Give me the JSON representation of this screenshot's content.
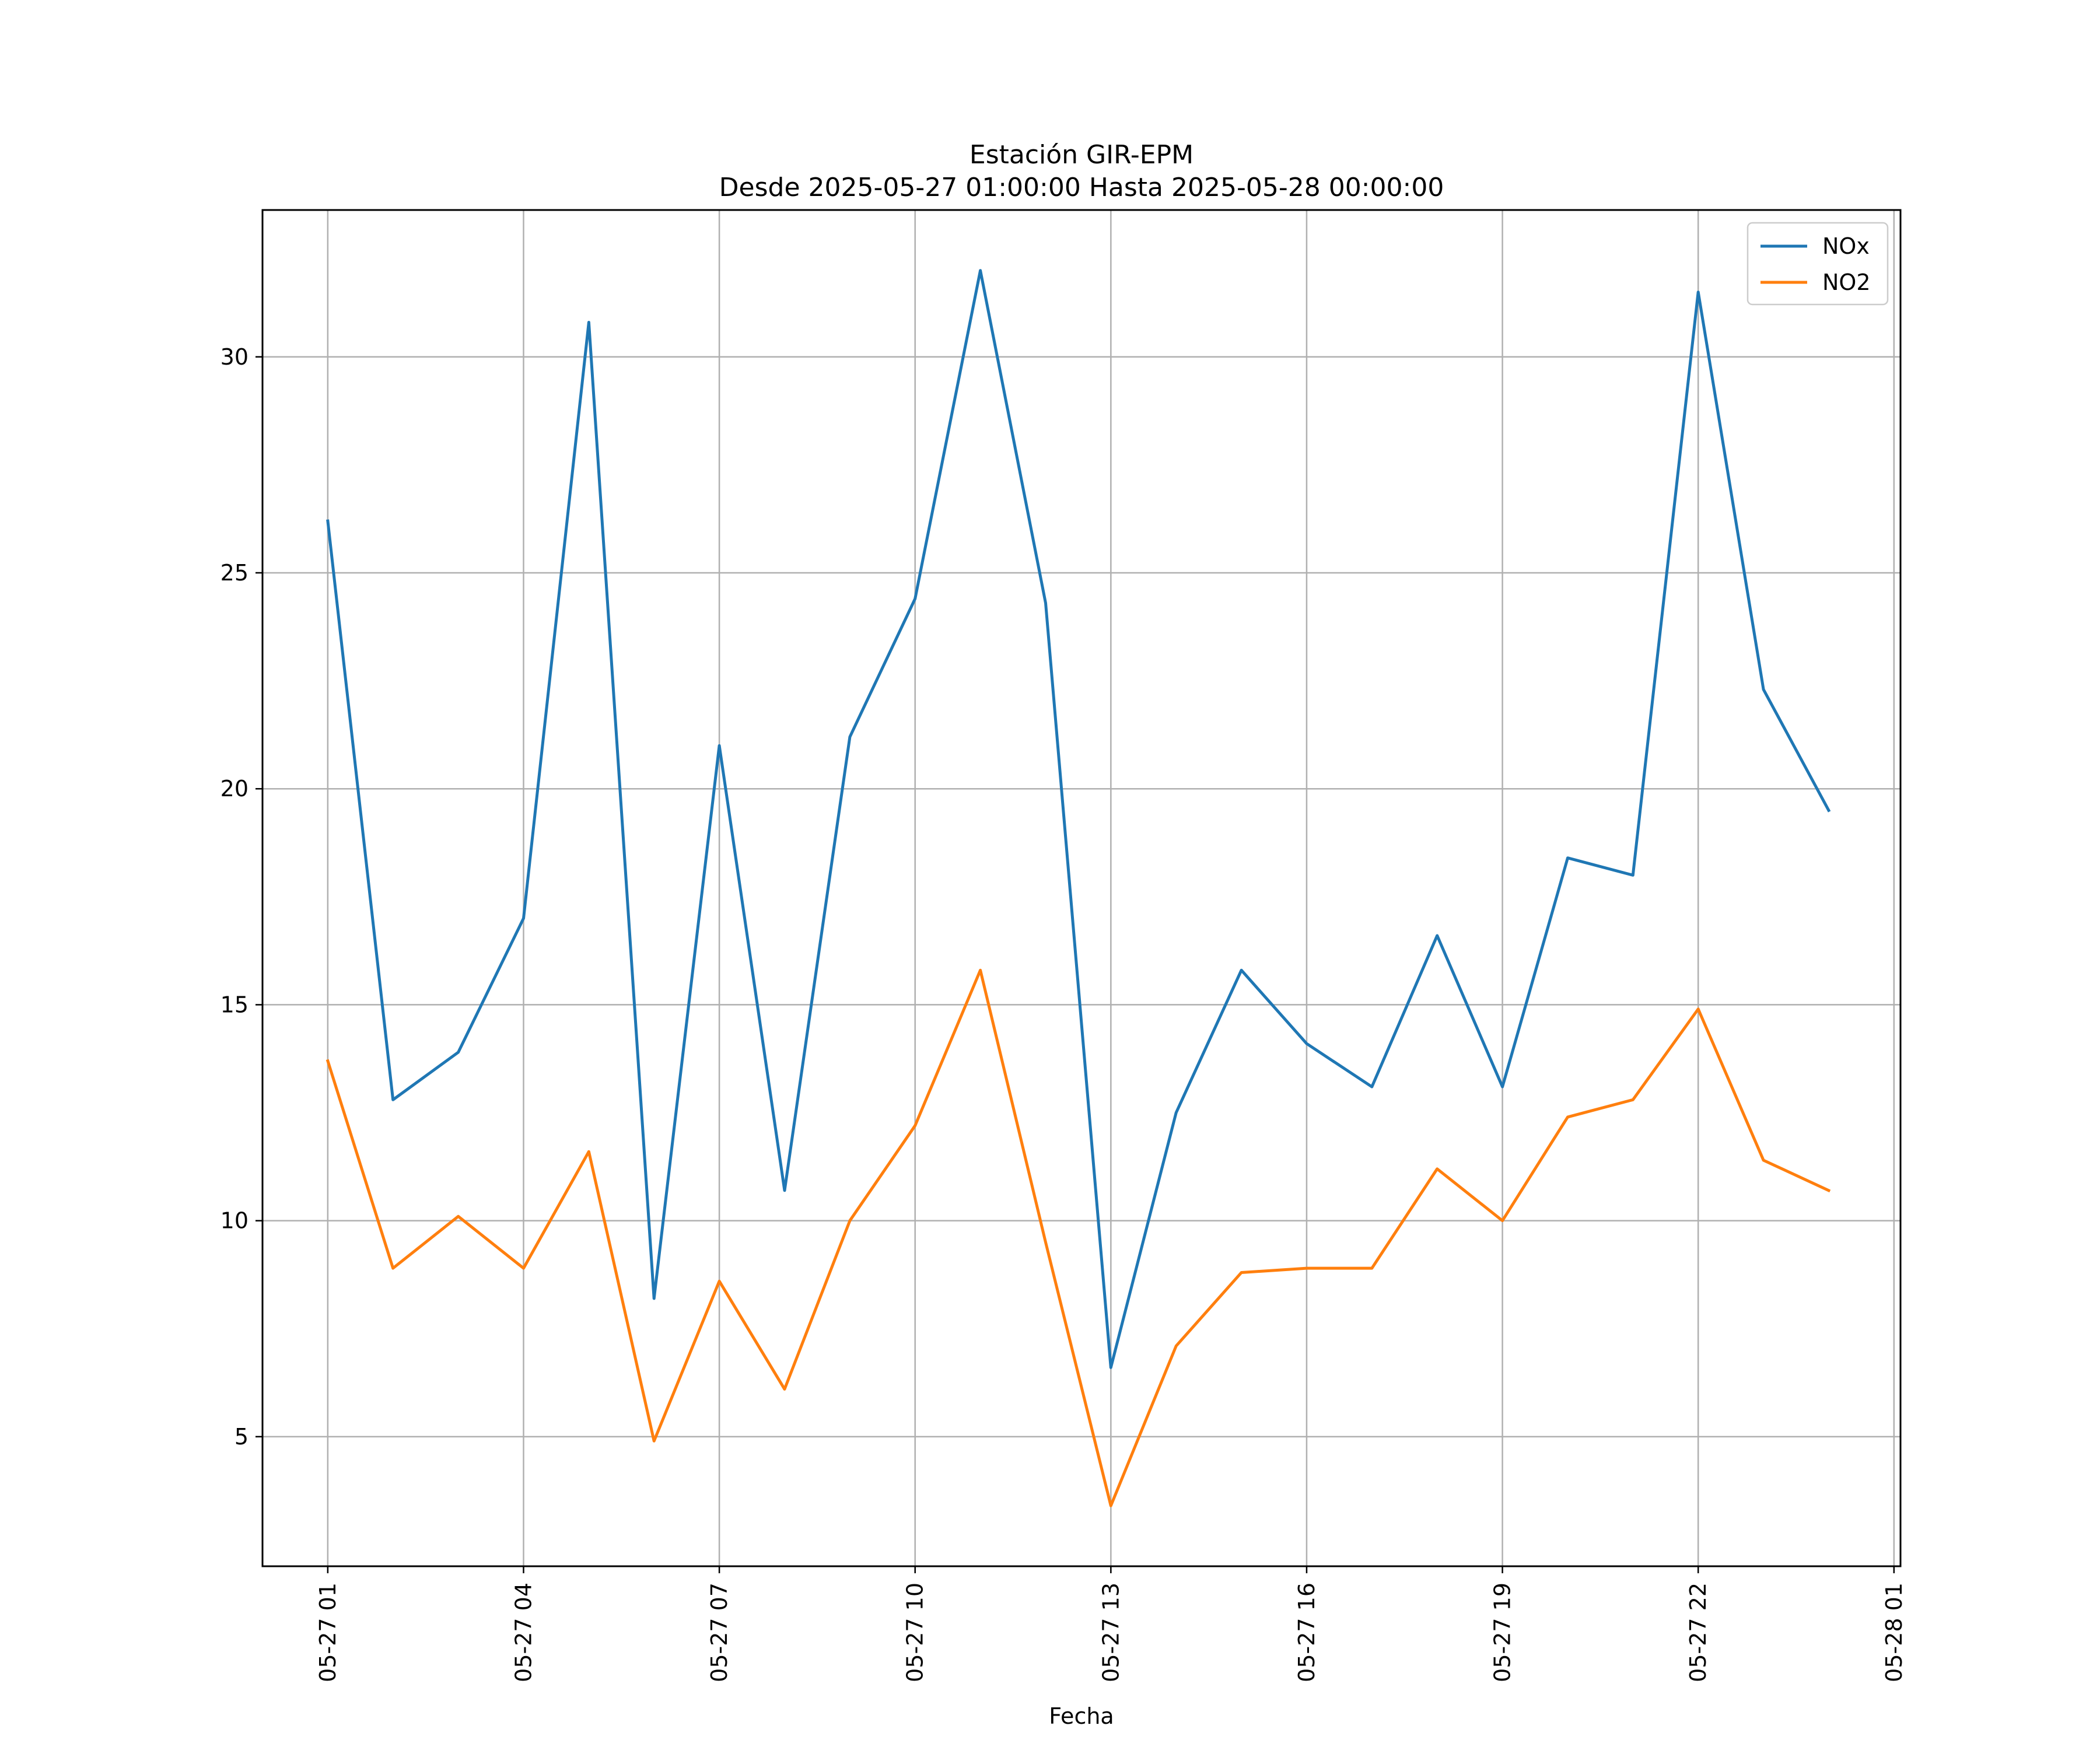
{
  "chart_data": {
    "type": "line",
    "title": "Estación GIR-EPM",
    "subtitle": "Desde 2025-05-27 01:00:00 Hasta 2025-05-28 00:00:00",
    "xlabel": "Fecha",
    "ylabel": "",
    "x": [
      "2025-05-27 01:00",
      "2025-05-27 02:00",
      "2025-05-27 03:00",
      "2025-05-27 04:00",
      "2025-05-27 05:00",
      "2025-05-27 06:00",
      "2025-05-27 07:00",
      "2025-05-27 08:00",
      "2025-05-27 09:00",
      "2025-05-27 10:00",
      "2025-05-27 11:00",
      "2025-05-27 12:00",
      "2025-05-27 13:00",
      "2025-05-27 14:00",
      "2025-05-27 15:00",
      "2025-05-27 16:00",
      "2025-05-27 17:00",
      "2025-05-27 18:00",
      "2025-05-27 19:00",
      "2025-05-27 20:00",
      "2025-05-27 21:00",
      "2025-05-27 22:00",
      "2025-05-27 23:00",
      "2025-05-28 00:00"
    ],
    "series": [
      {
        "name": "NOx",
        "color": "#1f77b4",
        "values": [
          26.2,
          12.8,
          13.9,
          17.0,
          30.8,
          8.2,
          21.0,
          10.7,
          21.2,
          24.4,
          32.0,
          24.3,
          6.6,
          12.5,
          15.8,
          14.1,
          13.1,
          16.6,
          13.1,
          18.4,
          18.0,
          31.5,
          22.3,
          19.5
        ]
      },
      {
        "name": "NO2",
        "color": "#ff7f0e",
        "values": [
          13.7,
          8.9,
          10.1,
          8.9,
          11.6,
          4.9,
          8.6,
          6.1,
          10.0,
          12.2,
          15.8,
          9.5,
          3.4,
          7.1,
          8.8,
          8.9,
          8.9,
          11.2,
          10.0,
          12.4,
          12.8,
          14.9,
          11.4,
          10.7
        ]
      }
    ],
    "xticks": [
      "05-27 01",
      "05-27 04",
      "05-27 07",
      "05-27 10",
      "05-27 13",
      "05-27 16",
      "05-27 19",
      "05-27 22",
      "05-28 01"
    ],
    "xlim": [
      "2025-05-27 00:00",
      "2025-05-28 01:06"
    ],
    "yticks": [
      5,
      10,
      15,
      20,
      25,
      30
    ],
    "ylim": [
      2.0,
      33.4
    ],
    "grid": true,
    "legend": "top-right"
  }
}
